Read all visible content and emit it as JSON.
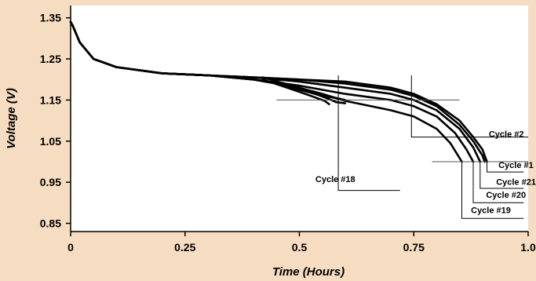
{
  "chart_data": {
    "type": "line",
    "title": "",
    "xlabel": "Time (Hours)",
    "ylabel": "Voltage (V)",
    "xlim": [
      0,
      1.0
    ],
    "ylim": [
      0.83,
      1.38
    ],
    "x_ticks": [
      "0",
      "0.25",
      "0.5",
      "0.75",
      "1.0"
    ],
    "x_tick_values": [
      0,
      0.25,
      0.5,
      0.75,
      1.0
    ],
    "y_ticks": [
      "0.85",
      "0.95",
      "1.05",
      "1.15",
      "1.25",
      "1.35"
    ],
    "y_tick_values": [
      0.85,
      0.95,
      1.05,
      1.15,
      1.25,
      1.35
    ],
    "grid": false,
    "series": [
      {
        "name": "Cycle #1",
        "points": [
          [
            0,
            1.34
          ],
          [
            0.005,
            1.33
          ],
          [
            0.02,
            1.29
          ],
          [
            0.05,
            1.25
          ],
          [
            0.1,
            1.23
          ],
          [
            0.2,
            1.215
          ],
          [
            0.3,
            1.21
          ],
          [
            0.4,
            1.205
          ],
          [
            0.5,
            1.2
          ],
          [
            0.6,
            1.195
          ],
          [
            0.7,
            1.18
          ],
          [
            0.75,
            1.165
          ],
          [
            0.8,
            1.14
          ],
          [
            0.85,
            1.1
          ],
          [
            0.88,
            1.06
          ],
          [
            0.9,
            1.03
          ],
          [
            0.91,
            1.0
          ]
        ]
      },
      {
        "name": "Cycle #2",
        "points": [
          [
            0,
            1.34
          ],
          [
            0.005,
            1.33
          ],
          [
            0.02,
            1.29
          ],
          [
            0.05,
            1.25
          ],
          [
            0.1,
            1.23
          ],
          [
            0.2,
            1.215
          ],
          [
            0.3,
            1.21
          ],
          [
            0.4,
            1.205
          ],
          [
            0.5,
            1.2
          ],
          [
            0.6,
            1.19
          ],
          [
            0.7,
            1.175
          ],
          [
            0.75,
            1.16
          ],
          [
            0.8,
            1.135
          ],
          [
            0.85,
            1.09
          ],
          [
            0.88,
            1.05
          ],
          [
            0.9,
            1.015
          ],
          [
            0.905,
            1.0
          ]
        ]
      },
      {
        "name": "Cycle #21",
        "points": [
          [
            0,
            1.34
          ],
          [
            0.005,
            1.33
          ],
          [
            0.02,
            1.29
          ],
          [
            0.05,
            1.25
          ],
          [
            0.1,
            1.23
          ],
          [
            0.2,
            1.215
          ],
          [
            0.3,
            1.21
          ],
          [
            0.4,
            1.205
          ],
          [
            0.5,
            1.195
          ],
          [
            0.6,
            1.18
          ],
          [
            0.7,
            1.165
          ],
          [
            0.75,
            1.15
          ],
          [
            0.8,
            1.125
          ],
          [
            0.85,
            1.08
          ],
          [
            0.88,
            1.035
          ],
          [
            0.895,
            1.0
          ]
        ]
      },
      {
        "name": "Cycle #20",
        "points": [
          [
            0,
            1.34
          ],
          [
            0.005,
            1.33
          ],
          [
            0.02,
            1.29
          ],
          [
            0.05,
            1.25
          ],
          [
            0.1,
            1.23
          ],
          [
            0.2,
            1.215
          ],
          [
            0.3,
            1.21
          ],
          [
            0.4,
            1.2
          ],
          [
            0.5,
            1.185
          ],
          [
            0.6,
            1.165
          ],
          [
            0.7,
            1.15
          ],
          [
            0.75,
            1.135
          ],
          [
            0.8,
            1.11
          ],
          [
            0.84,
            1.07
          ],
          [
            0.865,
            1.03
          ],
          [
            0.88,
            1.0
          ]
        ]
      },
      {
        "name": "Cycle #19",
        "points": [
          [
            0,
            1.34
          ],
          [
            0.005,
            1.33
          ],
          [
            0.02,
            1.29
          ],
          [
            0.05,
            1.25
          ],
          [
            0.1,
            1.23
          ],
          [
            0.2,
            1.215
          ],
          [
            0.3,
            1.21
          ],
          [
            0.4,
            1.2
          ],
          [
            0.5,
            1.18
          ],
          [
            0.55,
            1.165
          ],
          [
            0.6,
            1.148
          ],
          [
            0.7,
            1.125
          ],
          [
            0.75,
            1.11
          ],
          [
            0.8,
            1.08
          ],
          [
            0.83,
            1.045
          ],
          [
            0.855,
            1.0
          ]
        ]
      },
      {
        "name": "Cycle #18",
        "points": [
          [
            0,
            1.34
          ],
          [
            0.005,
            1.33
          ],
          [
            0.02,
            1.29
          ],
          [
            0.05,
            1.25
          ],
          [
            0.1,
            1.23
          ],
          [
            0.2,
            1.215
          ],
          [
            0.3,
            1.21
          ],
          [
            0.4,
            1.2
          ],
          [
            0.45,
            1.19
          ],
          [
            0.5,
            1.175
          ],
          [
            0.55,
            1.16
          ],
          [
            0.58,
            1.155
          ],
          [
            0.6,
            1.15
          ]
        ]
      },
      {
        "name": "",
        "points": [
          [
            0.42,
            1.205
          ],
          [
            0.5,
            1.18
          ],
          [
            0.54,
            1.163
          ],
          [
            0.57,
            1.15
          ],
          [
            0.58,
            1.145
          ],
          [
            0.6,
            1.142
          ]
        ]
      },
      {
        "name": "",
        "points": [
          [
            0.42,
            1.2
          ],
          [
            0.5,
            1.17
          ],
          [
            0.53,
            1.158
          ],
          [
            0.555,
            1.148
          ],
          [
            0.565,
            1.14
          ]
        ]
      }
    ],
    "annotations": [
      {
        "label": "Cycle #2",
        "at": [
          0.914,
          1.06
        ],
        "line": [
          [
            0.745,
            1.21
          ],
          [
            0.745,
            1.06
          ],
          [
            1.0,
            1.06
          ]
        ]
      },
      {
        "label": "Cycle #1",
        "at": [
          0.935,
          0.985
        ],
        "line": [
          [
            0.91,
            1.0
          ],
          [
            0.91,
            0.975
          ],
          [
            0.99,
            0.975
          ]
        ]
      },
      {
        "label": "Cycle #21",
        "at": [
          0.93,
          0.944
        ],
        "line": [
          [
            0.895,
            1.0
          ],
          [
            0.895,
            0.935
          ],
          [
            0.99,
            0.935
          ]
        ]
      },
      {
        "label": "Cycle #20",
        "at": [
          0.908,
          0.912
        ],
        "line": [
          [
            0.88,
            1.0
          ],
          [
            0.88,
            0.9
          ],
          [
            0.99,
            0.9
          ]
        ]
      },
      {
        "label": "Cycle #19",
        "at": [
          0.875,
          0.875
        ],
        "line": [
          [
            0.855,
            1.0
          ],
          [
            0.855,
            0.862
          ],
          [
            0.99,
            0.862
          ]
        ]
      },
      {
        "label": "Cycle #18",
        "at": [
          0.535,
          0.95
        ],
        "line": [
          [
            0.585,
            1.21
          ],
          [
            0.585,
            0.93
          ],
          [
            0.72,
            0.93
          ]
        ]
      }
    ],
    "reference_lines": [
      {
        "from": [
          0.45,
          1.15
        ],
        "to": [
          0.85,
          1.15
        ]
      },
      {
        "from": [
          0.79,
          1.0
        ],
        "to": [
          1.0,
          1.0
        ]
      }
    ]
  }
}
